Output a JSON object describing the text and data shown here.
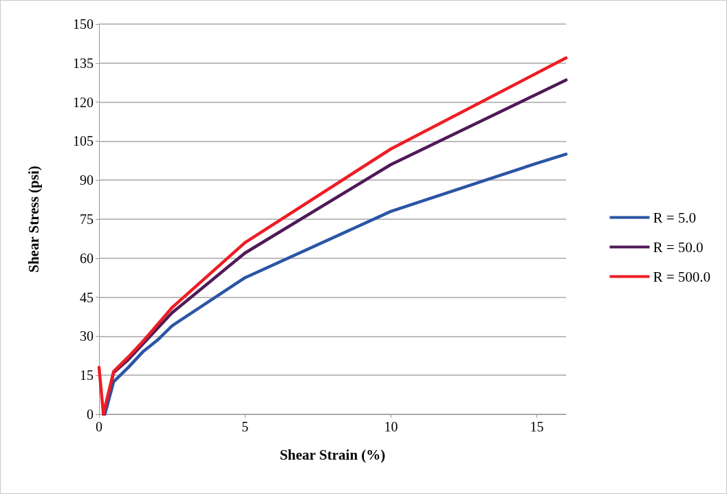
{
  "chart_data": {
    "type": "line",
    "xlabel": "Shear Strain (%)",
    "ylabel": "Shear Stress (psi)",
    "xlim": [
      0,
      16
    ],
    "xticks": [
      0,
      5,
      10,
      15
    ],
    "ylim": [
      0,
      150
    ],
    "yticks": [
      0,
      15,
      30,
      45,
      60,
      75,
      90,
      105,
      120,
      135,
      150
    ],
    "grid": "y",
    "legend": "right",
    "marker": "none",
    "line_style": "solid",
    "series": [
      {
        "name": "R = 5.0",
        "color": "#2b55a5",
        "x": [
          0.2,
          0.5,
          1,
          1.5,
          2,
          2.5,
          5,
          10,
          15,
          16
        ],
        "values": [
          0,
          12.5,
          18,
          24,
          28.5,
          34,
          52.5,
          78,
          96.5,
          100
        ]
      },
      {
        "name": "R = 50.0",
        "color": "#4f1a57",
        "x": [
          0.15,
          0.5,
          1,
          1.5,
          2,
          2.5,
          5,
          10,
          16
        ],
        "values": [
          0,
          16,
          21,
          27,
          33,
          39,
          62,
          96,
          128.5
        ]
      },
      {
        "name": "R = 500.0",
        "color": "#ee1d25",
        "x": [
          0,
          0.15,
          0.5,
          1,
          1.5,
          2,
          2.5,
          5,
          10,
          16
        ],
        "values": [
          18,
          0,
          16.5,
          22,
          28,
          34.5,
          41,
          66,
          102,
          137
        ]
      }
    ]
  }
}
